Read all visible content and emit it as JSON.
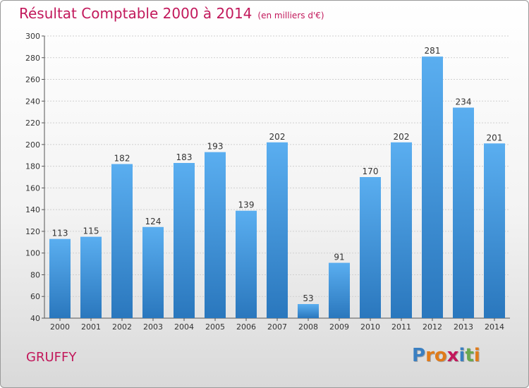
{
  "header": {
    "title": "Résultat Comptable 2000 à 2014",
    "subtitle": "(en milliers d'€)"
  },
  "footer": {
    "place": "GRUFFY",
    "logo_letters": [
      "P",
      "r",
      "o",
      "x",
      "i",
      "t",
      "i"
    ],
    "logo_colors": [
      "#3a7fc1",
      "#e07b1a",
      "#e07b1a",
      "#c2185b",
      "#3a7fc1",
      "#6aa84f",
      "#e07b1a"
    ]
  },
  "chart_data": {
    "type": "bar",
    "title": "Résultat Comptable 2000 à 2014",
    "subtitle": "(en milliers d'€)",
    "categories": [
      "2000",
      "2001",
      "2002",
      "2003",
      "2004",
      "2005",
      "2006",
      "2007",
      "2008",
      "2009",
      "2010",
      "2011",
      "2012",
      "2013",
      "2014"
    ],
    "values": [
      113,
      115,
      182,
      124,
      183,
      193,
      139,
      202,
      53,
      91,
      170,
      202,
      281,
      234,
      201
    ],
    "ylim": [
      40,
      300
    ],
    "yticks": [
      40,
      60,
      80,
      100,
      120,
      140,
      160,
      180,
      200,
      220,
      240,
      260,
      280,
      300
    ],
    "grid": true,
    "bar_color": "#3d8fd6",
    "xlabel": "",
    "ylabel": ""
  }
}
